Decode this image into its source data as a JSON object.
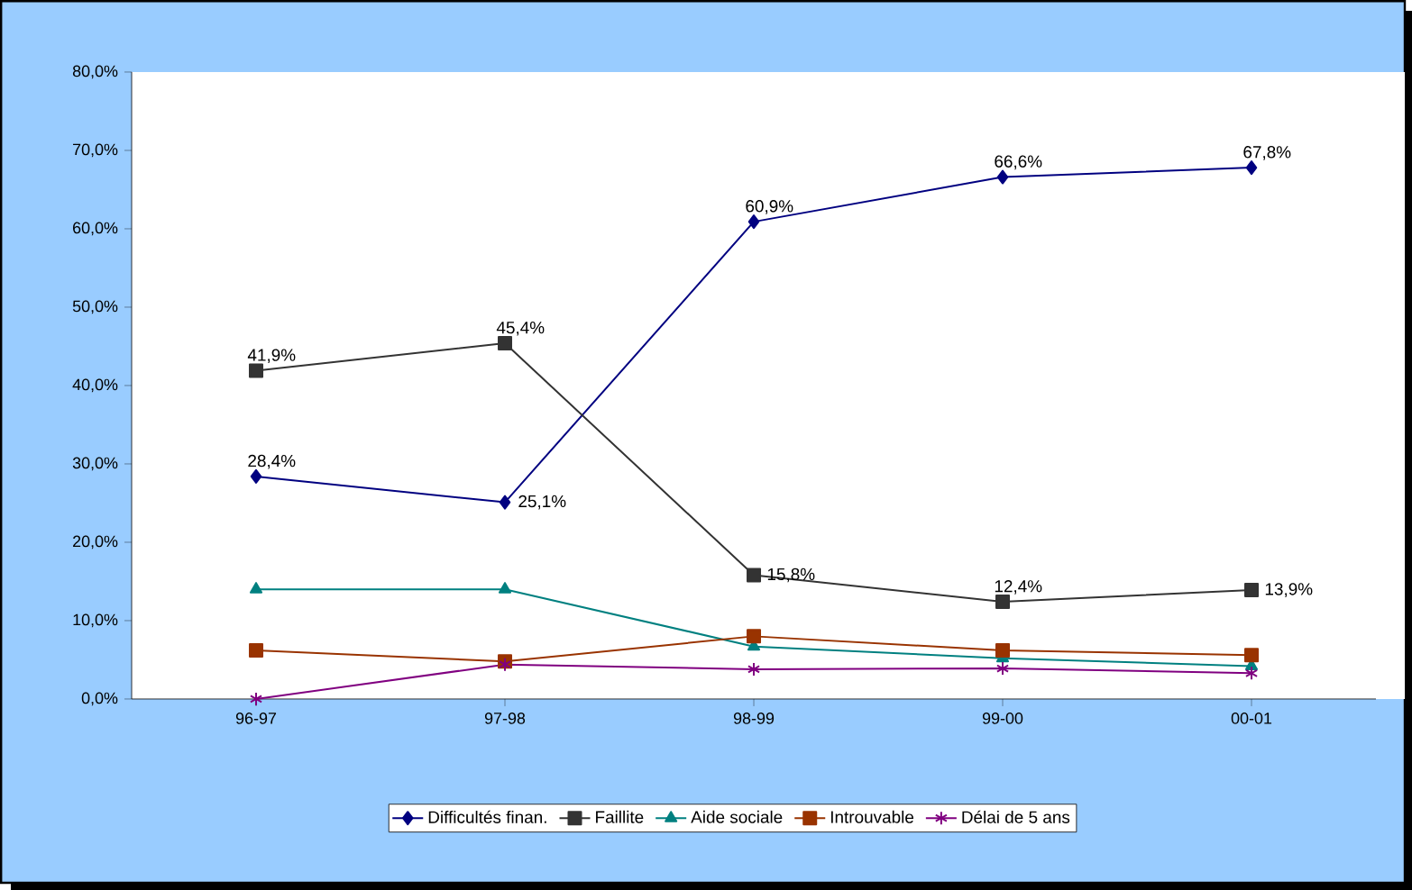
{
  "chart_data": {
    "type": "line",
    "categories": [
      "96-97",
      "97-98",
      "98-99",
      "99-00",
      "00-01"
    ],
    "series": [
      {
        "name": "Difficultés finan.",
        "color": "#000080",
        "marker": "diamond",
        "values": [
          28.4,
          25.1,
          60.9,
          66.6,
          67.8
        ],
        "value_labels": [
          "28,4%",
          "25,1%",
          "60,9%",
          "66,6%",
          "67,8%"
        ]
      },
      {
        "name": "Faillite",
        "color": "#333333",
        "marker": "square",
        "values": [
          41.9,
          45.4,
          15.8,
          12.4,
          13.9
        ],
        "value_labels": [
          "41,9%",
          "45,4%",
          "15,8%",
          "12,4%",
          "13,9%"
        ]
      },
      {
        "name": "Aide sociale",
        "color": "#008080",
        "marker": "triangle",
        "values": [
          14.0,
          14.0,
          6.7,
          5.2,
          4.2
        ]
      },
      {
        "name": "Introuvable",
        "color": "#993300",
        "marker": "square",
        "values": [
          6.2,
          4.8,
          8.0,
          6.2,
          5.6
        ]
      },
      {
        "name": "Délai de 5 ans",
        "color": "#800080",
        "marker": "cross",
        "values": [
          0.0,
          4.4,
          3.8,
          3.9,
          3.3
        ]
      }
    ],
    "ylim": [
      0,
      80
    ],
    "yticks": [
      {
        "value": 0,
        "label": "0,0%"
      },
      {
        "value": 10,
        "label": "10,0%"
      },
      {
        "value": 20,
        "label": "20,0%"
      },
      {
        "value": 30,
        "label": "30,0%"
      },
      {
        "value": 40,
        "label": "40,0%"
      },
      {
        "value": 50,
        "label": "50,0%"
      },
      {
        "value": 60,
        "label": "60,0%"
      },
      {
        "value": 70,
        "label": "70,0%"
      },
      {
        "value": 80,
        "label": "80,0%"
      }
    ],
    "grid": false,
    "legend": "bottom",
    "line_style": "solid"
  }
}
